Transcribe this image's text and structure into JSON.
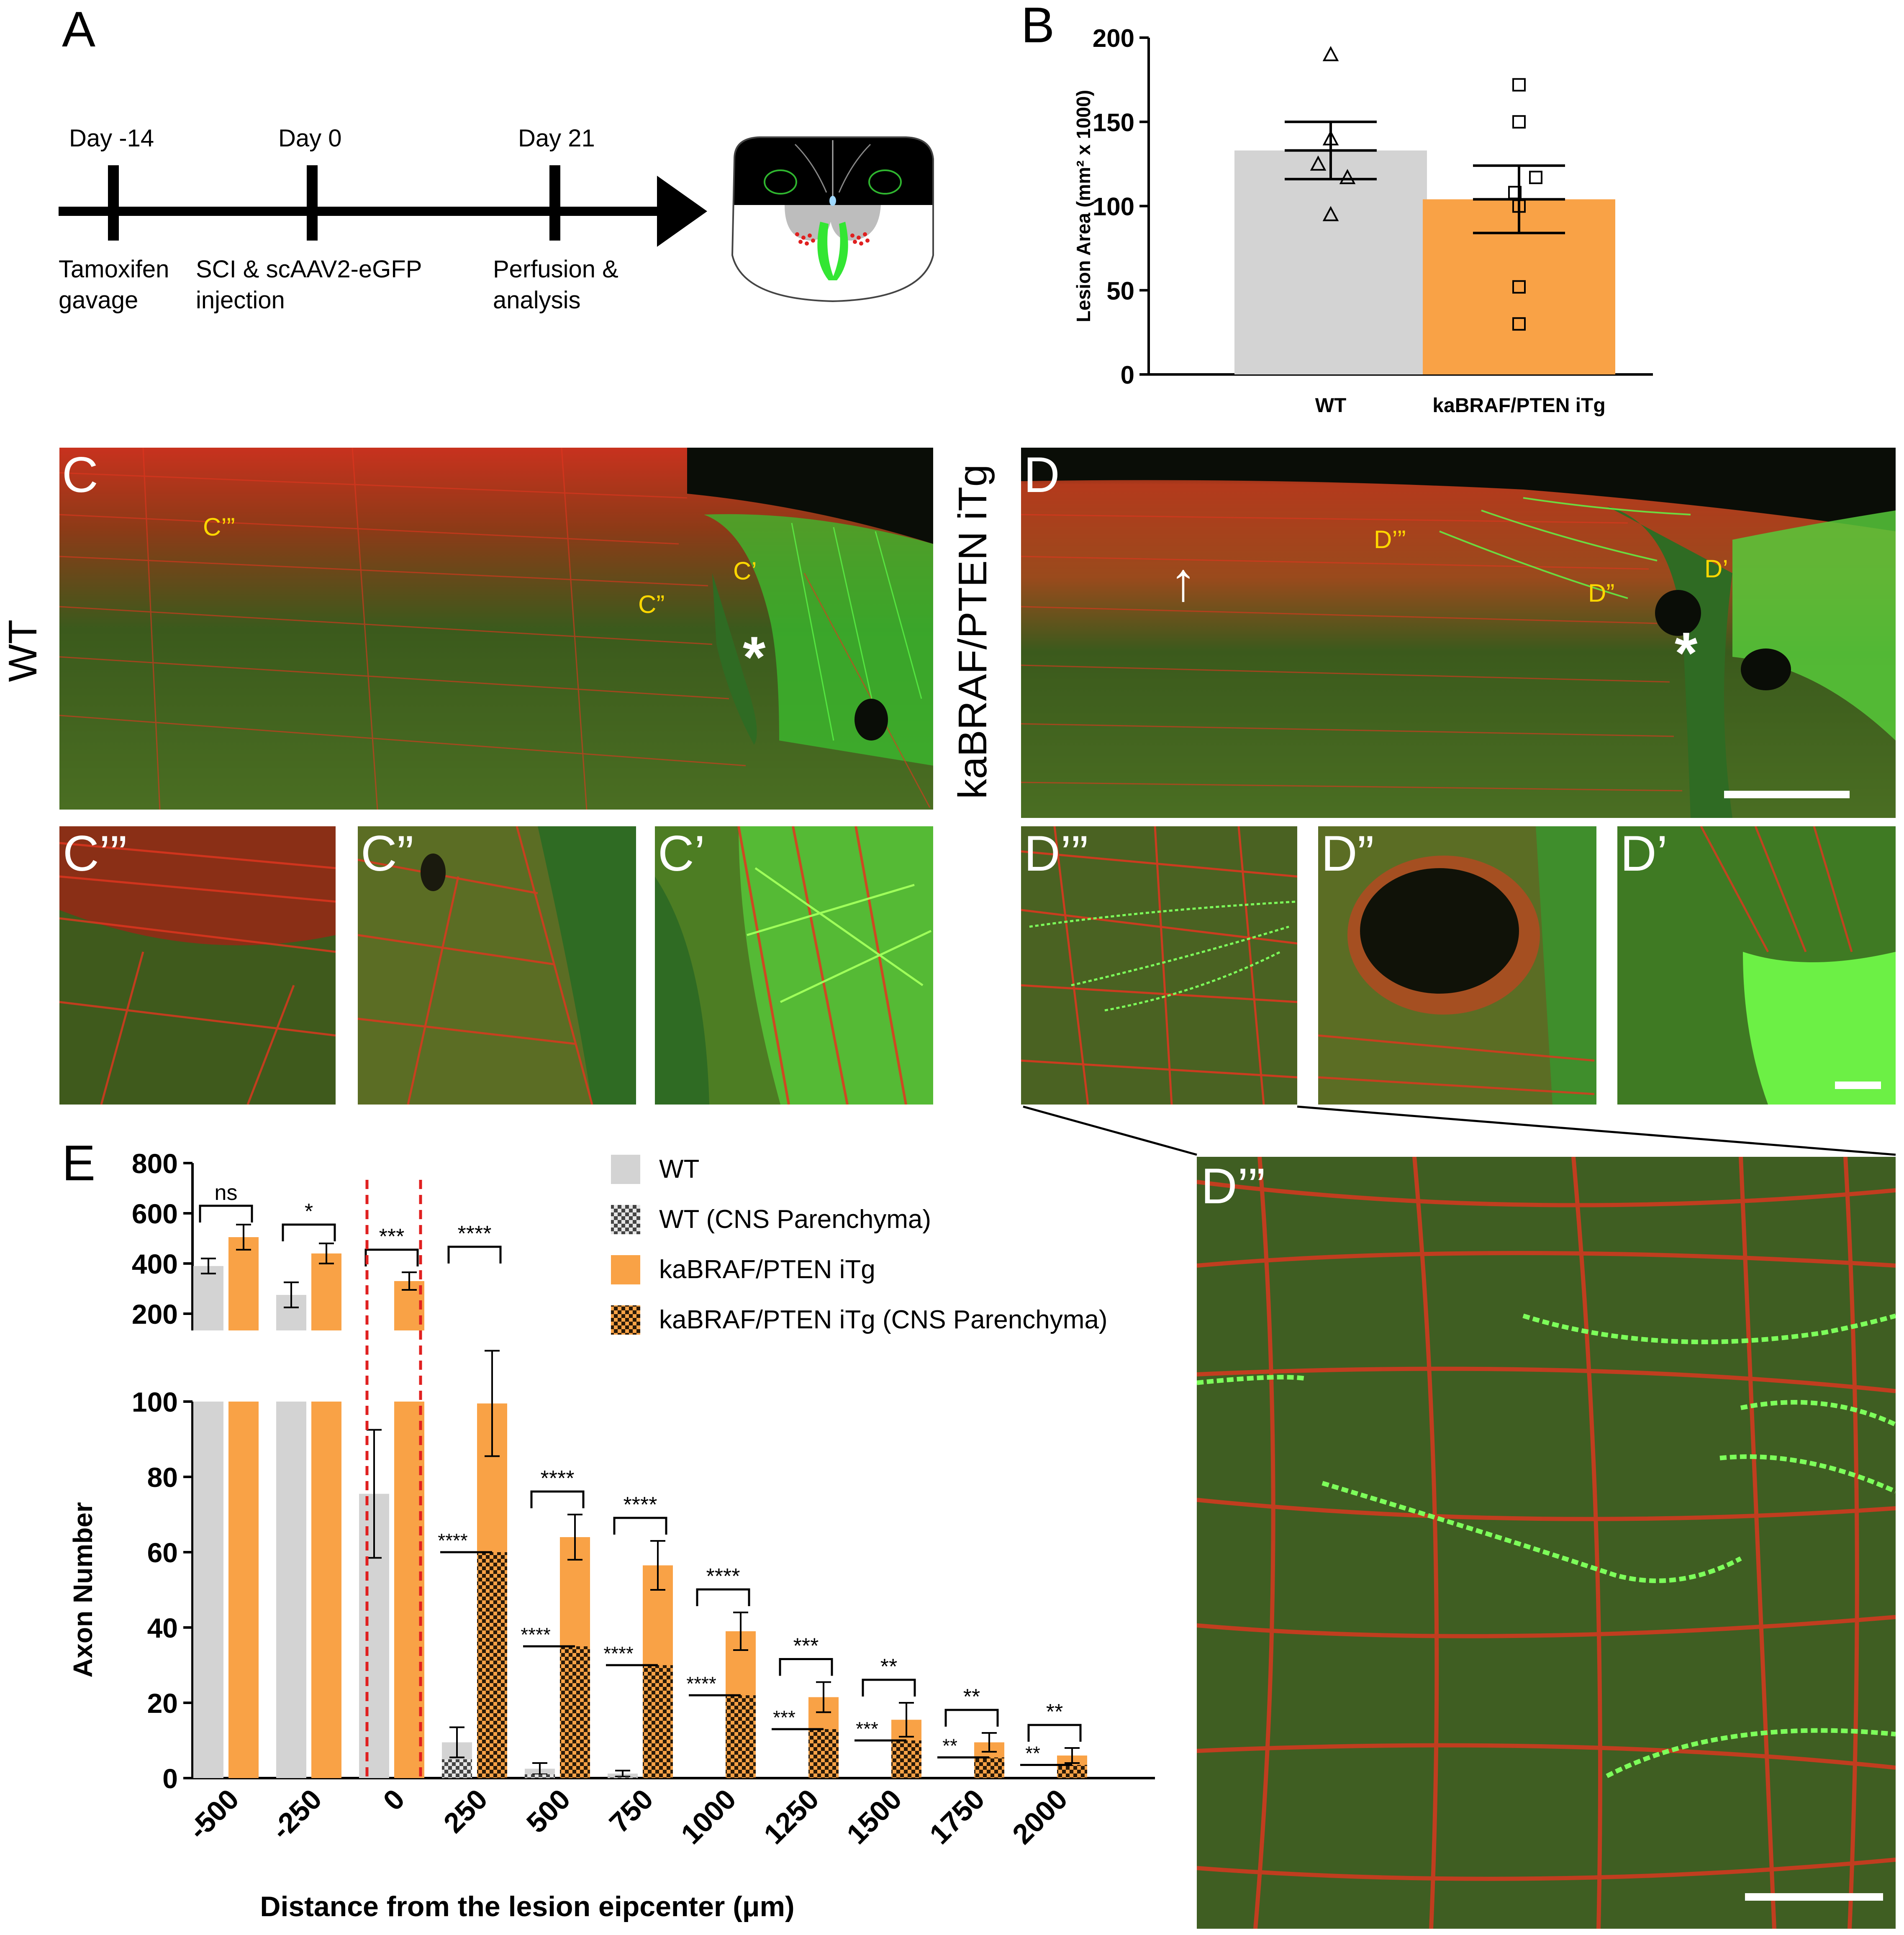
{
  "panels": {
    "A": "A",
    "B": "B",
    "C": "C",
    "D": "D",
    "E": "E"
  },
  "timeline": {
    "ticks": [
      {
        "top": "Day -14",
        "bottom": [
          "Tamoxifen",
          "gavage"
        ]
      },
      {
        "top": "Day 0",
        "bottom": [
          "SCI & scAAV2-eGFP",
          "injection"
        ]
      },
      {
        "top": "Day 21",
        "bottom": [
          "Perfusion &",
          "analysis"
        ]
      }
    ]
  },
  "group_labels": {
    "wt": "WT",
    "tg": "kaBRAF/PTEN iTg"
  },
  "micro_labels": {
    "c": "C",
    "c1": "C’",
    "c2": "C”",
    "c3": "C’”",
    "d": "D",
    "d1": "D’",
    "d2": "D”",
    "d3": "D’”",
    "c1_inset": "C’",
    "c2_inset": "C”",
    "c3_inset": "C’”",
    "d1_inset": "D’",
    "d2_inset": "D”",
    "d3_inset": "D’”",
    "d3_zoom": "D’”",
    "star": "*",
    "arrow": "↑"
  },
  "colors": {
    "wt_bar": "#d3d3d3",
    "tg_bar": "#f9a246",
    "sig_line": "#e02020",
    "fluor_red": "#e2361f",
    "fluor_green": "#33e633"
  },
  "chart_data": [
    {
      "type": "bar",
      "panel": "B",
      "categories": [
        "WT",
        "kaBRAF/PTEN iTg"
      ],
      "values": [
        133,
        104
      ],
      "sem": [
        17,
        20
      ],
      "points": [
        [
          190,
          125,
          117,
          120,
          140,
          118,
          95,
          115,
          110,
          80,
          100,
          95
        ],
        [
          172,
          150,
          115,
          70,
          52,
          30,
          108,
          100,
          125,
          65,
          35,
          55
        ]
      ],
      "ylabel": "Lesion Area (mm² x 1000)",
      "ylim": [
        0,
        200
      ],
      "yticks": [
        0,
        50,
        100,
        150,
        200
      ],
      "marker_wt": "triangle",
      "marker_tg": "square"
    },
    {
      "type": "bar",
      "panel": "E",
      "categories": [
        "-500",
        "-250",
        "0",
        "250",
        "500",
        "750",
        "1000",
        "1250",
        "1500",
        "1750",
        "2000"
      ],
      "xlabel": "Distance from the lesion eipcenter (μm)",
      "ylabel": "Axon Number",
      "lower_ylim": [
        0,
        100
      ],
      "lower_yticks": [
        0,
        20,
        40,
        60,
        80,
        100
      ],
      "upper_ylim": [
        100,
        800
      ],
      "upper_yticks": [
        200,
        400,
        600,
        800
      ],
      "series": [
        {
          "name": "WT",
          "values": [
            390,
            275,
            75.5,
            9.5,
            2.5,
            1.2,
            0,
            0,
            0,
            0,
            0
          ],
          "sem": [
            30,
            50,
            17,
            4,
            1.5,
            0.8,
            0,
            0,
            0,
            0,
            0
          ]
        },
        {
          "name": "WT (CNS Parenchyma)",
          "values": [
            null,
            null,
            null,
            5,
            1,
            0.3,
            0,
            0,
            0,
            0,
            0
          ]
        },
        {
          "name": "kaBRAF/PTEN iTg",
          "values": [
            505,
            440,
            330,
            99.5,
            64,
            56.5,
            39,
            21.5,
            15.5,
            9.5,
            6
          ],
          "sem": [
            50,
            40,
            35,
            14,
            6,
            6.5,
            5,
            4,
            4.5,
            2.5,
            2
          ]
        },
        {
          "name": "kaBRAF/PTEN iTg (CNS Parenchyma)",
          "values": [
            null,
            null,
            null,
            60,
            35,
            30,
            22,
            13,
            10,
            5.5,
            3.5
          ]
        }
      ],
      "significance_between": [
        "ns",
        "*",
        "***",
        "****",
        "****",
        "****",
        "****",
        "***",
        "**",
        "**",
        "**"
      ],
      "significance_parenchyma": [
        "",
        "",
        "",
        "****",
        "****",
        "****",
        "****",
        "***",
        "***",
        "**",
        "**"
      ]
    }
  ]
}
